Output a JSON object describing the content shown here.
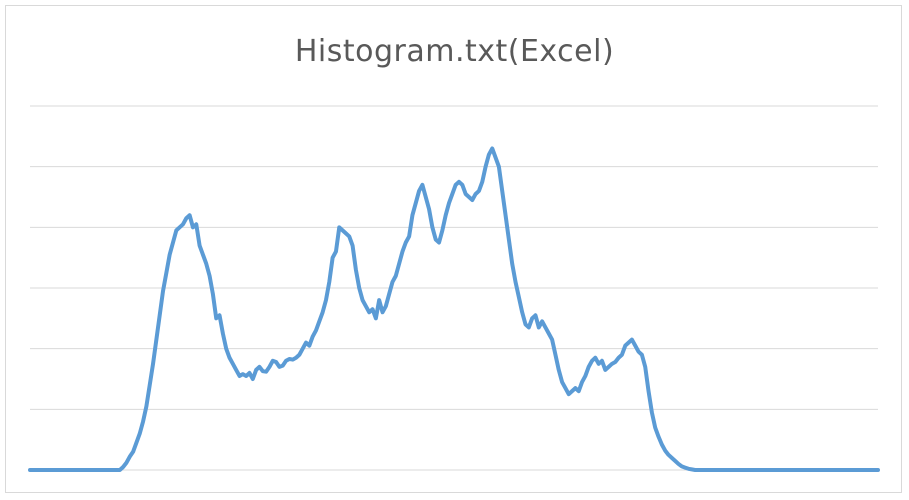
{
  "chart_data": {
    "type": "line",
    "title": "Histogram.txt(Excel)",
    "xlabel": "",
    "ylabel": "",
    "x_range": [
      0,
      255
    ],
    "ylim": [
      0,
      6
    ],
    "gridlines": 6,
    "grid": true,
    "legend": "none",
    "tick_labels_visible": false,
    "series_color": "#5b9bd5",
    "gridline_color": "#d9d9d9",
    "series": [
      {
        "values": [
          0,
          0,
          0,
          0,
          0,
          0,
          0,
          0,
          0,
          0,
          0,
          0,
          0,
          0,
          0,
          0,
          0,
          0,
          0,
          0,
          0,
          0,
          0,
          0,
          0,
          0,
          0,
          0,
          0.05,
          0.12,
          0.22,
          0.3,
          0.45,
          0.6,
          0.8,
          1.05,
          1.4,
          1.75,
          2.15,
          2.55,
          2.95,
          3.25,
          3.55,
          3.75,
          3.95,
          4.0,
          4.05,
          4.15,
          4.2,
          4.0,
          4.05,
          3.7,
          3.55,
          3.4,
          3.2,
          2.9,
          2.5,
          2.55,
          2.25,
          2.0,
          1.85,
          1.75,
          1.65,
          1.55,
          1.58,
          1.55,
          1.6,
          1.5,
          1.65,
          1.7,
          1.63,
          1.62,
          1.7,
          1.8,
          1.78,
          1.7,
          1.72,
          1.8,
          1.83,
          1.82,
          1.85,
          1.9,
          2.0,
          2.1,
          2.05,
          2.2,
          2.3,
          2.45,
          2.6,
          2.8,
          3.1,
          3.5,
          3.6,
          4.0,
          3.95,
          3.9,
          3.85,
          3.7,
          3.3,
          3.0,
          2.8,
          2.7,
          2.6,
          2.65,
          2.5,
          2.8,
          2.6,
          2.7,
          2.9,
          3.1,
          3.2,
          3.4,
          3.6,
          3.75,
          3.85,
          4.2,
          4.4,
          4.6,
          4.7,
          4.5,
          4.3,
          4.0,
          3.8,
          3.75,
          3.95,
          4.2,
          4.4,
          4.55,
          4.7,
          4.75,
          4.7,
          4.55,
          4.5,
          4.45,
          4.55,
          4.6,
          4.75,
          5.0,
          5.2,
          5.3,
          5.15,
          5.0,
          4.6,
          4.2,
          3.8,
          3.4,
          3.1,
          2.85,
          2.6,
          2.4,
          2.35,
          2.5,
          2.55,
          2.35,
          2.45,
          2.35,
          2.25,
          2.15,
          1.9,
          1.65,
          1.45,
          1.35,
          1.25,
          1.3,
          1.35,
          1.3,
          1.45,
          1.55,
          1.7,
          1.8,
          1.85,
          1.75,
          1.8,
          1.65,
          1.7,
          1.75,
          1.78,
          1.85,
          1.9,
          2.05,
          2.1,
          2.15,
          2.05,
          1.95,
          1.9,
          1.7,
          1.3,
          0.95,
          0.7,
          0.55,
          0.42,
          0.32,
          0.25,
          0.2,
          0.15,
          0.1,
          0.06,
          0.04,
          0.02,
          0.01,
          0,
          0,
          0,
          0,
          0,
          0,
          0,
          0,
          0,
          0,
          0,
          0,
          0,
          0,
          0,
          0,
          0,
          0,
          0,
          0,
          0,
          0,
          0,
          0,
          0,
          0,
          0,
          0,
          0,
          0,
          0,
          0,
          0,
          0,
          0,
          0,
          0,
          0,
          0,
          0,
          0,
          0,
          0,
          0,
          0,
          0,
          0,
          0,
          0,
          0,
          0,
          0,
          0,
          0,
          0,
          0
        ]
      }
    ]
  }
}
